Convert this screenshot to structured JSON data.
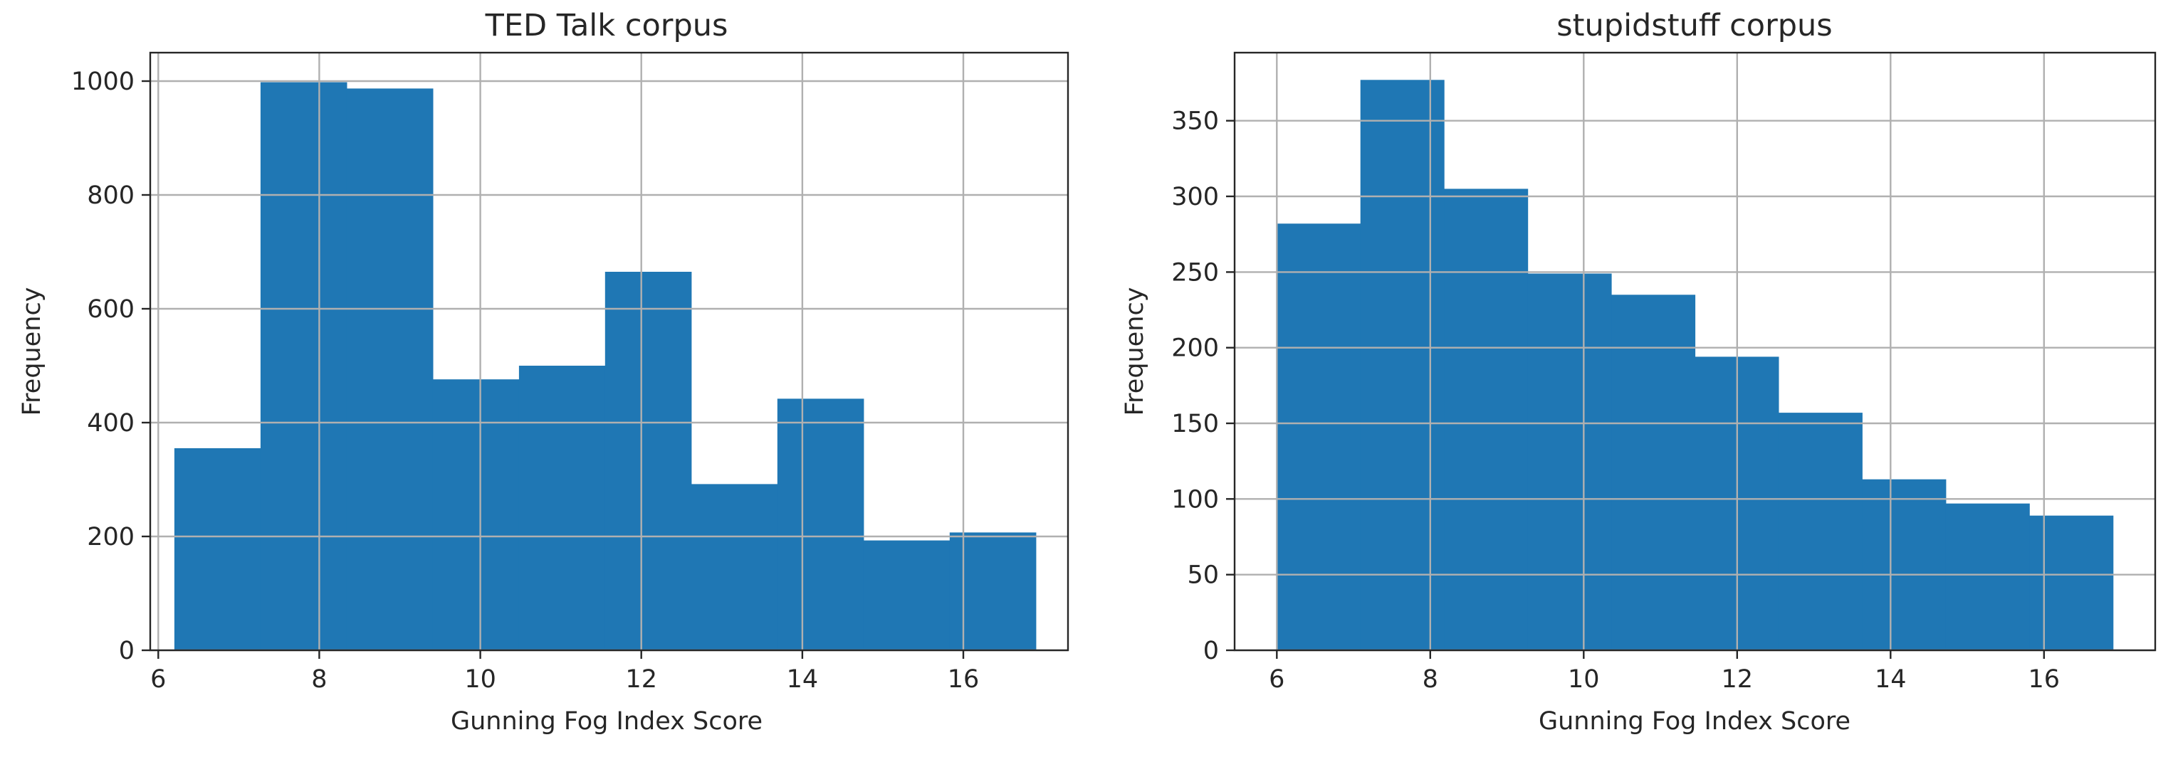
{
  "chart_data": [
    {
      "type": "bar",
      "subtype": "histogram",
      "title": "TED Talk corpus",
      "xlabel": "Gunning Fog Index Score",
      "ylabel": "Frequency",
      "xlim": [
        5.9,
        17.3
      ],
      "ylim": [
        0,
        1050
      ],
      "xticks": [
        6,
        8,
        10,
        12,
        14,
        16
      ],
      "yticks": [
        0,
        200,
        400,
        600,
        800,
        1000
      ],
      "grid": true,
      "color": "#1f77b4",
      "bins": [
        {
          "x0": 6.2,
          "x1": 7.27,
          "value": 355
        },
        {
          "x0": 7.27,
          "x1": 8.34,
          "value": 998
        },
        {
          "x0": 8.34,
          "x1": 9.41,
          "value": 987
        },
        {
          "x0": 9.41,
          "x1": 10.48,
          "value": 476
        },
        {
          "x0": 10.48,
          "x1": 11.55,
          "value": 500
        },
        {
          "x0": 11.55,
          "x1": 12.62,
          "value": 665
        },
        {
          "x0": 12.62,
          "x1": 13.69,
          "value": 292
        },
        {
          "x0": 13.69,
          "x1": 14.76,
          "value": 442
        },
        {
          "x0": 14.76,
          "x1": 15.83,
          "value": 193
        },
        {
          "x0": 15.83,
          "x1": 16.9,
          "value": 207
        }
      ]
    },
    {
      "type": "bar",
      "subtype": "histogram",
      "title": "stupidstuff corpus",
      "xlabel": "Gunning Fog Index Score",
      "ylabel": "Frequency",
      "xlim": [
        5.45,
        17.45
      ],
      "ylim": [
        0,
        395
      ],
      "xticks": [
        6,
        8,
        10,
        12,
        14,
        16
      ],
      "yticks": [
        0,
        50,
        100,
        150,
        200,
        250,
        300,
        350
      ],
      "grid": true,
      "color": "#1f77b4",
      "bins": [
        {
          "x0": 6.0,
          "x1": 7.09,
          "value": 282
        },
        {
          "x0": 7.09,
          "x1": 8.18,
          "value": 377
        },
        {
          "x0": 8.18,
          "x1": 9.27,
          "value": 305
        },
        {
          "x0": 9.27,
          "x1": 10.36,
          "value": 249
        },
        {
          "x0": 10.36,
          "x1": 11.45,
          "value": 235
        },
        {
          "x0": 11.45,
          "x1": 12.54,
          "value": 194
        },
        {
          "x0": 12.54,
          "x1": 13.63,
          "value": 157
        },
        {
          "x0": 13.63,
          "x1": 14.72,
          "value": 113
        },
        {
          "x0": 14.72,
          "x1": 15.81,
          "value": 97
        },
        {
          "x0": 15.81,
          "x1": 16.9,
          "value": 89
        }
      ]
    }
  ]
}
